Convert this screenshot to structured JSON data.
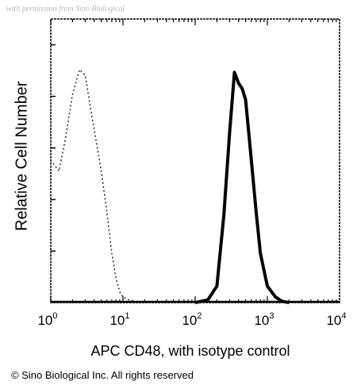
{
  "watermark": "with permission from Sino Biological",
  "copyright": "© Sino Biological Inc. All rights reserved",
  "chart_data": {
    "type": "line",
    "xlabel": "APC CD48, with isotype control",
    "ylabel": "Relative Cell Number",
    "xscale": "log",
    "xlim": [
      1,
      10000
    ],
    "ylim": [
      0,
      1
    ],
    "x_ticks": [
      {
        "base": "10",
        "exp": "0",
        "value": 1
      },
      {
        "base": "10",
        "exp": "1",
        "value": 10
      },
      {
        "base": "10",
        "exp": "2",
        "value": 100
      },
      {
        "base": "10",
        "exp": "3",
        "value": 1000
      },
      {
        "base": "10",
        "exp": "4",
        "value": 10000
      }
    ],
    "series": [
      {
        "style": "dotted",
        "color": "#333333",
        "x": [
          1.0,
          1.3,
          1.6,
          2.0,
          2.5,
          3.0,
          3.5,
          4.0,
          5.0,
          6.0,
          7.0,
          8.0,
          9.0,
          10.0,
          12.0,
          15.0,
          20.0
        ],
        "y": [
          0.52,
          0.48,
          0.6,
          0.76,
          0.85,
          0.83,
          0.72,
          0.63,
          0.48,
          0.33,
          0.18,
          0.09,
          0.04,
          0.02,
          0.01,
          0.005,
          0.0
        ]
      },
      {
        "style": "solid",
        "color": "#000000",
        "x": [
          100,
          150,
          200,
          250,
          300,
          350,
          400,
          450,
          500,
          600,
          700,
          800,
          1000,
          1300,
          1600,
          2000
        ],
        "y": [
          0.0,
          0.01,
          0.06,
          0.32,
          0.62,
          0.84,
          0.8,
          0.78,
          0.74,
          0.52,
          0.33,
          0.18,
          0.06,
          0.02,
          0.005,
          0.0
        ]
      }
    ]
  }
}
